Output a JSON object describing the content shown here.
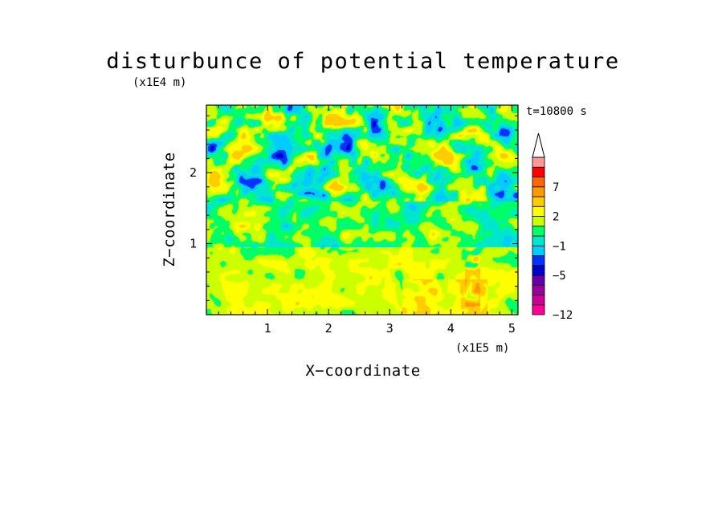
{
  "chart_data": {
    "type": "heatmap",
    "title": "disturbunce of potential temperature",
    "time_label": "t=10800 s",
    "xlabel": "X−coordinate",
    "ylabel": "Z−coordinate",
    "x_unit": "(x1E5 m)",
    "y_unit": "(x1E4 m)",
    "xlim": [
      0,
      5.1
    ],
    "ylim": [
      0,
      2.95
    ],
    "xticks": [
      1,
      2,
      3,
      4,
      5
    ],
    "xtick_labels": [
      "1",
      "2",
      "3",
      "4",
      "5"
    ],
    "yticks": [
      1,
      2
    ],
    "ytick_labels": [
      "1",
      "2"
    ],
    "grid": false,
    "legend": "colorbar-right",
    "colorbar": {
      "levels": [
        -12,
        -10,
        -8,
        -6,
        -5,
        -3,
        -2,
        -1,
        0,
        1,
        2,
        3,
        5,
        7,
        9,
        11
      ],
      "tick_values": [
        -12,
        -5,
        -1,
        2,
        7
      ],
      "tick_labels": [
        "−12",
        "−5",
        "−1",
        "2",
        "7"
      ],
      "colors": [
        "#ff0099",
        "#cc0099",
        "#990099",
        "#6600aa",
        "#0000cc",
        "#0033ff",
        "#00ccff",
        "#00e6cc",
        "#00ff66",
        "#ccff00",
        "#ffff00",
        "#ffcc00",
        "#ff9900",
        "#ff6600",
        "#ff0000",
        "#ff9999"
      ],
      "extend": "max"
    },
    "values_description_note": ""
  }
}
